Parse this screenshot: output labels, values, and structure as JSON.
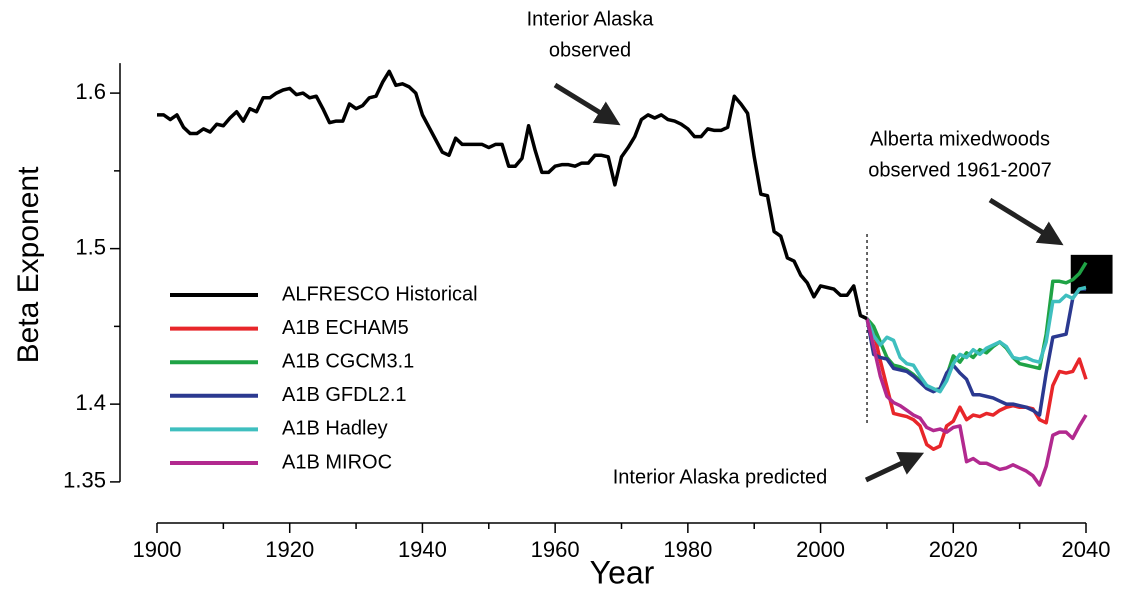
{
  "chart_data": {
    "type": "line",
    "xlabel": "Year",
    "ylabel": "Beta Exponent",
    "xlim": [
      1900,
      2040
    ],
    "ylim": [
      1.33,
      1.62
    ],
    "xticks": [
      1900,
      1920,
      1940,
      1960,
      1980,
      2000,
      2020,
      2040
    ],
    "xminor_ticks": [
      1910,
      1930,
      1950,
      1970,
      1990,
      2010,
      2030
    ],
    "yticks": [
      1.35,
      1.4,
      1.5,
      1.6
    ],
    "yminor_ticks": [
      1.45,
      1.55
    ],
    "series": [
      {
        "name": "ALFRESCO Historical",
        "color": "#000000",
        "x": [
          1900,
          1901,
          1902,
          1903,
          1904,
          1905,
          1906,
          1907,
          1908,
          1909,
          1910,
          1911,
          1912,
          1913,
          1914,
          1915,
          1916,
          1917,
          1918,
          1919,
          1920,
          1921,
          1922,
          1923,
          1924,
          1925,
          1926,
          1927,
          1928,
          1929,
          1930,
          1931,
          1932,
          1933,
          1934,
          1935,
          1936,
          1937,
          1938,
          1939,
          1940,
          1941,
          1942,
          1943,
          1944,
          1945,
          1946,
          1947,
          1948,
          1949,
          1950,
          1951,
          1952,
          1953,
          1954,
          1955,
          1956,
          1957,
          1958,
          1959,
          1960,
          1961,
          1962,
          1963,
          1964,
          1965,
          1966,
          1967,
          1968,
          1969,
          1970,
          1971,
          1972,
          1973,
          1974,
          1975,
          1976,
          1977,
          1978,
          1979,
          1980,
          1981,
          1982,
          1983,
          1984,
          1985,
          1986,
          1987,
          1988,
          1989,
          1990,
          1991,
          1992,
          1993,
          1994,
          1995,
          1996,
          1997,
          1998,
          1999,
          2000,
          2001,
          2002,
          2003,
          2004,
          2005,
          2006,
          2007
        ],
        "values": [
          1.586,
          1.586,
          1.583,
          1.586,
          1.578,
          1.574,
          1.574,
          1.577,
          1.575,
          1.58,
          1.579,
          1.584,
          1.588,
          1.582,
          1.59,
          1.588,
          1.597,
          1.597,
          1.6,
          1.602,
          1.603,
          1.599,
          1.6,
          1.597,
          1.598,
          1.59,
          1.581,
          1.582,
          1.582,
          1.593,
          1.59,
          1.592,
          1.597,
          1.598,
          1.607,
          1.614,
          1.605,
          1.606,
          1.604,
          1.6,
          1.586,
          1.578,
          1.57,
          1.562,
          1.56,
          1.571,
          1.567,
          1.567,
          1.567,
          1.567,
          1.565,
          1.567,
          1.567,
          1.553,
          1.553,
          1.558,
          1.579,
          1.563,
          1.549,
          1.549,
          1.553,
          1.554,
          1.554,
          1.553,
          1.555,
          1.555,
          1.56,
          1.56,
          1.559,
          1.541,
          1.559,
          1.565,
          1.572,
          1.583,
          1.586,
          1.584,
          1.586,
          1.583,
          1.582,
          1.58,
          1.577,
          1.572,
          1.572,
          1.577,
          1.576,
          1.576,
          1.578,
          1.598,
          1.593,
          1.587,
          1.559,
          1.535,
          1.534,
          1.511,
          1.508,
          1.494,
          1.492,
          1.483,
          1.478,
          1.469,
          1.476,
          1.475,
          1.474,
          1.47,
          1.47,
          1.476,
          1.457,
          1.455
        ]
      },
      {
        "name": "A1B ECHAM5",
        "color": "#e8262a",
        "x": [
          2007,
          2008,
          2009,
          2010,
          2011,
          2012,
          2013,
          2014,
          2015,
          2016,
          2017,
          2018,
          2019,
          2020,
          2021,
          2022,
          2023,
          2024,
          2025,
          2026,
          2027,
          2028,
          2029,
          2030,
          2031,
          2032,
          2033,
          2034,
          2035,
          2036,
          2037,
          2038,
          2039,
          2040
        ],
        "values": [
          1.455,
          1.447,
          1.428,
          1.411,
          1.394,
          1.393,
          1.392,
          1.39,
          1.386,
          1.374,
          1.371,
          1.373,
          1.386,
          1.389,
          1.398,
          1.39,
          1.393,
          1.392,
          1.394,
          1.393,
          1.396,
          1.398,
          1.399,
          1.398,
          1.398,
          1.397,
          1.39,
          1.388,
          1.412,
          1.421,
          1.42,
          1.421,
          1.429,
          1.416
        ]
      },
      {
        "name": "A1B CGCM3.1",
        "color": "#1fa345",
        "x": [
          2007,
          2008,
          2009,
          2010,
          2011,
          2012,
          2013,
          2014,
          2015,
          2016,
          2017,
          2018,
          2019,
          2020,
          2021,
          2022,
          2023,
          2024,
          2025,
          2026,
          2027,
          2028,
          2029,
          2030,
          2031,
          2032,
          2033,
          2034,
          2035,
          2036,
          2037,
          2038,
          2039,
          2040
        ],
        "values": [
          1.455,
          1.45,
          1.44,
          1.43,
          1.425,
          1.424,
          1.422,
          1.419,
          1.415,
          1.412,
          1.409,
          1.41,
          1.418,
          1.431,
          1.427,
          1.433,
          1.43,
          1.435,
          1.433,
          1.437,
          1.44,
          1.436,
          1.43,
          1.426,
          1.425,
          1.424,
          1.423,
          1.445,
          1.479,
          1.479,
          1.478,
          1.48,
          1.484,
          1.491
        ]
      },
      {
        "name": "A1B GFDL2.1",
        "color": "#2b3990",
        "x": [
          2007,
          2008,
          2009,
          2010,
          2011,
          2012,
          2013,
          2014,
          2015,
          2016,
          2017,
          2018,
          2019,
          2020,
          2021,
          2022,
          2023,
          2024,
          2025,
          2026,
          2027,
          2028,
          2029,
          2030,
          2031,
          2032,
          2033,
          2034,
          2035,
          2036,
          2037,
          2038,
          2039,
          2040
        ],
        "values": [
          1.455,
          1.432,
          1.43,
          1.429,
          1.423,
          1.422,
          1.421,
          1.418,
          1.414,
          1.41,
          1.408,
          1.41,
          1.42,
          1.425,
          1.42,
          1.416,
          1.406,
          1.406,
          1.405,
          1.404,
          1.402,
          1.4,
          1.4,
          1.399,
          1.398,
          1.396,
          1.393,
          1.42,
          1.443,
          1.444,
          1.445,
          1.468,
          1.474,
          1.474
        ]
      },
      {
        "name": "A1B Hadley",
        "color": "#3fbfbf",
        "x": [
          2007,
          2008,
          2009,
          2010,
          2011,
          2012,
          2013,
          2014,
          2015,
          2016,
          2017,
          2018,
          2019,
          2020,
          2021,
          2022,
          2023,
          2024,
          2025,
          2026,
          2027,
          2028,
          2029,
          2030,
          2031,
          2032,
          2033,
          2034,
          2035,
          2036,
          2037,
          2038,
          2039,
          2040
        ],
        "values": [
          1.455,
          1.444,
          1.438,
          1.443,
          1.441,
          1.43,
          1.426,
          1.425,
          1.418,
          1.412,
          1.41,
          1.408,
          1.415,
          1.426,
          1.432,
          1.43,
          1.435,
          1.432,
          1.436,
          1.438,
          1.44,
          1.437,
          1.43,
          1.429,
          1.43,
          1.428,
          1.427,
          1.44,
          1.466,
          1.466,
          1.47,
          1.468,
          1.474,
          1.475
        ]
      },
      {
        "name": "A1B MIROC",
        "color": "#b2298f",
        "x": [
          2007,
          2008,
          2009,
          2010,
          2011,
          2012,
          2013,
          2014,
          2015,
          2016,
          2017,
          2018,
          2019,
          2020,
          2021,
          2022,
          2023,
          2024,
          2025,
          2026,
          2027,
          2028,
          2029,
          2030,
          2031,
          2032,
          2033,
          2034,
          2035,
          2036,
          2037,
          2038,
          2039,
          2040
        ],
        "values": [
          1.455,
          1.437,
          1.418,
          1.405,
          1.401,
          1.399,
          1.396,
          1.393,
          1.391,
          1.385,
          1.383,
          1.384,
          1.382,
          1.385,
          1.386,
          1.363,
          1.365,
          1.362,
          1.362,
          1.36,
          1.358,
          1.359,
          1.361,
          1.359,
          1.357,
          1.354,
          1.348,
          1.36,
          1.38,
          1.382,
          1.382,
          1.378,
          1.386,
          1.393
        ]
      }
    ],
    "observed_box": {
      "x": [
        2037.7,
        2044
      ],
      "y": [
        1.471,
        1.496
      ]
    },
    "annotations": [
      {
        "lines": [
          "Interior Alaska",
          "observed"
        ]
      },
      {
        "lines": [
          "Alberta mixedwoods",
          "observed 1961-2007"
        ]
      },
      {
        "lines": [
          "Interior Alaska predicted"
        ]
      }
    ]
  }
}
